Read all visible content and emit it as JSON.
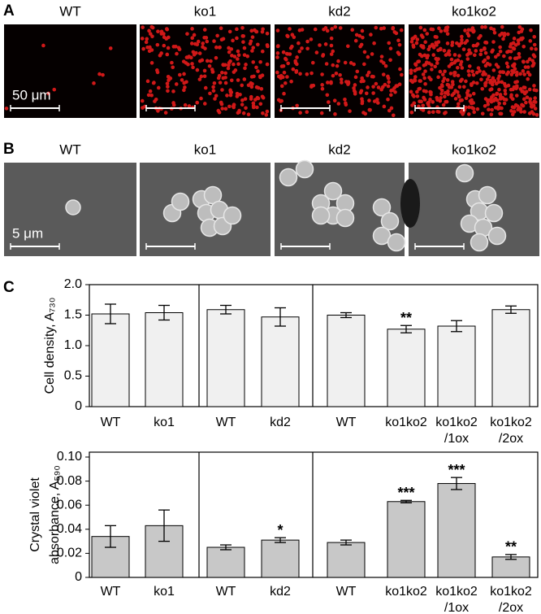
{
  "figure": {
    "panels": [
      {
        "letter": "A",
        "labels": [
          "WT",
          "ko1",
          "kd2",
          "ko1ko2"
        ],
        "scale_bar": "50 μm"
      },
      {
        "letter": "B",
        "labels": [
          "WT",
          "ko1",
          "kd2",
          "ko1ko2"
        ],
        "scale_bar": "5 μm"
      }
    ],
    "c_letter": "C"
  },
  "chart_data": [
    {
      "type": "bar",
      "ylabel": "Cell density, A₇₃₀",
      "color": "#f0f0f0",
      "categories": [
        "WT",
        "ko1",
        "WT",
        "kd2",
        "WT",
        "ko1ko2",
        "ko1ko2\n/1ox",
        "ko1ko2\n/2ox"
      ],
      "values": [
        1.52,
        1.54,
        1.59,
        1.47,
        1.5,
        1.27,
        1.32,
        1.59
      ],
      "errors": [
        0.16,
        0.12,
        0.07,
        0.15,
        0.04,
        0.06,
        0.09,
        0.06
      ],
      "significance": [
        null,
        null,
        null,
        null,
        null,
        "**",
        null,
        null
      ],
      "ylim": [
        0,
        2
      ],
      "yticks": [
        0,
        0.5,
        {
          "value": 1,
          "label": "1.0"
        },
        1.5,
        {
          "value": 2,
          "label": "2.0"
        }
      ]
    },
    {
      "type": "bar",
      "ylabel": "Crystal violet\nabsorbance, A₅₉₀",
      "color": "#c8c8c8",
      "categories": [
        "WT",
        "ko1",
        "WT",
        "kd2",
        "WT",
        "ko1ko2",
        "ko1ko2\n/1ox",
        "ko1ko2\n/2ox"
      ],
      "values": [
        0.034,
        0.043,
        0.025,
        0.031,
        0.029,
        0.063,
        0.078,
        0.017
      ],
      "errors": [
        0.009,
        0.013,
        0.002,
        0.002,
        0.002,
        0.001,
        0.005,
        0.002
      ],
      "significance": [
        null,
        null,
        null,
        "*",
        null,
        "***",
        "***",
        "**"
      ],
      "ylim": [
        0,
        0.1
      ],
      "yticks": [
        0,
        0.02,
        0.04,
        0.06,
        0.08,
        {
          "value": 0.1,
          "label": "0.10"
        }
      ]
    }
  ]
}
